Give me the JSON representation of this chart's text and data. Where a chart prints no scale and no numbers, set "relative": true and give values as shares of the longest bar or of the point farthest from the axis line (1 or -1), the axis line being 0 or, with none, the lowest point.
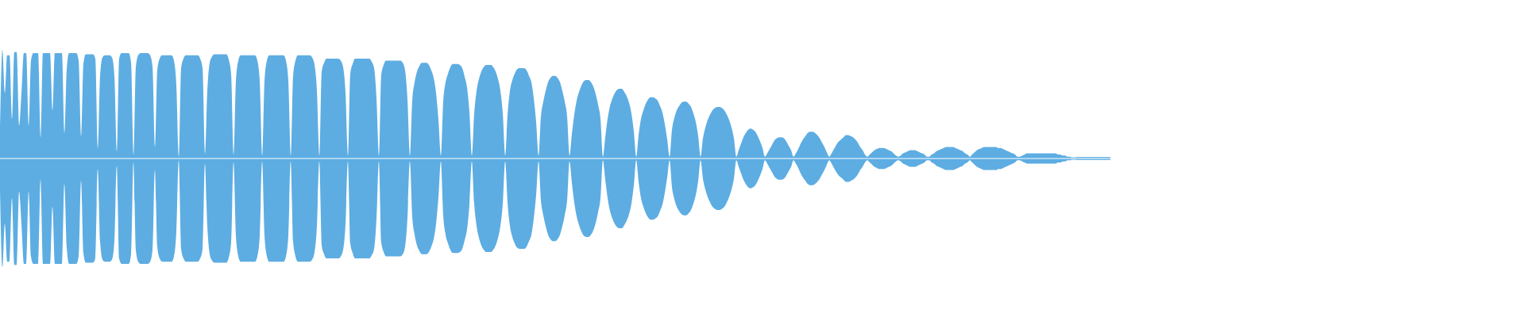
{
  "chart_data": [
    {
      "type": "area",
      "relative": true,
      "categories": [
        null,
        null,
        null,
        null,
        null,
        null,
        null,
        null,
        null,
        null,
        null,
        null,
        null,
        null,
        null,
        null,
        null,
        null,
        null,
        null,
        null,
        null,
        null,
        null,
        null,
        null,
        null,
        null,
        null,
        null,
        null,
        null,
        null,
        null,
        null,
        null,
        null,
        null,
        null,
        null,
        null,
        null,
        null,
        null,
        null,
        null,
        null,
        null,
        null,
        null,
        null,
        null,
        null,
        null,
        null,
        null,
        null,
        null,
        null,
        null,
        null,
        null,
        null,
        null,
        null,
        null,
        null,
        null,
        null,
        null,
        null,
        null,
        null,
        null,
        null,
        null,
        null,
        null,
        null,
        null,
        null,
        null,
        null,
        null,
        null,
        null,
        null,
        null,
        null,
        null,
        null,
        null,
        null,
        null,
        null,
        null,
        null,
        null,
        null,
        null,
        null,
        null,
        null,
        null,
        null,
        null,
        null,
        null,
        null,
        null,
        null,
        null,
        null,
        null,
        null,
        null,
        null,
        null,
        null,
        null,
        null,
        null,
        null,
        null,
        null,
        null,
        null,
        null,
        null,
        null,
        null,
        null,
        null,
        null,
        null,
        null,
        null,
        null,
        null,
        null,
        null,
        null,
        null,
        null,
        null,
        null,
        null,
        null,
        null,
        null,
        null,
        null,
        null,
        null,
        null,
        null,
        null,
        null,
        null,
        null,
        null,
        null,
        null,
        null,
        null,
        null,
        null,
        null,
        null,
        null,
        null,
        null,
        null,
        null,
        null,
        null,
        null,
        null,
        null,
        null,
        null,
        null,
        null,
        null,
        null,
        null,
        null,
        null,
        null,
        null,
        null,
        null,
        null,
        null,
        null,
        null,
        null,
        null,
        null,
        null,
        null,
        null,
        null,
        null,
        null,
        null,
        null,
        null,
        null,
        null,
        null,
        null,
        null,
        null,
        null,
        null,
        null,
        null,
        null,
        null,
        null,
        null,
        null,
        null,
        null,
        null,
        null,
        null,
        null,
        null,
        null,
        null,
        null,
        null,
        null,
        null,
        null,
        null,
        null,
        null,
        null,
        null,
        null,
        null,
        null,
        null,
        null,
        null,
        null,
        null,
        null,
        null,
        null,
        null,
        null,
        null,
        null,
        null,
        null,
        null,
        null,
        null,
        null,
        null,
        null,
        null,
        null,
        null,
        null,
        null,
        null,
        null,
        null,
        null,
        null,
        null,
        null,
        null,
        null,
        null,
        null,
        null,
        null,
        null,
        null,
        null,
        null,
        null,
        null,
        null,
        null,
        null,
        null,
        null,
        null,
        null,
        null,
        null,
        null,
        null,
        null,
        null,
        null,
        null,
        null,
        null,
        null,
        null,
        null,
        null,
        null,
        null,
        null,
        null,
        null,
        null,
        null,
        null,
        null,
        null,
        null,
        null,
        null,
        null,
        null,
        null,
        null,
        null,
        null,
        null,
        null,
        null,
        null,
        null,
        null,
        null,
        null,
        null,
        null,
        null,
        null,
        null,
        null,
        null,
        null,
        null,
        null,
        null,
        null,
        null,
        null,
        null,
        null,
        null,
        null,
        null,
        null,
        null,
        null,
        null,
        null,
        null,
        null,
        null,
        null,
        null,
        null,
        null,
        null,
        null,
        null,
        null,
        null,
        null,
        null,
        null,
        null,
        null,
        null,
        null,
        null,
        null,
        null,
        null,
        null,
        null,
        null,
        null,
        null,
        null,
        null,
        null,
        null,
        null,
        null,
        null,
        null,
        null,
        null,
        null,
        null,
        null,
        null,
        null,
        null,
        null,
        null,
        null,
        null,
        null,
        null,
        null,
        null,
        null,
        null,
        null,
        null,
        null,
        null,
        null,
        null,
        null,
        null,
        null,
        null,
        null,
        null,
        null,
        null,
        null,
        null,
        null,
        null,
        null,
        null,
        null,
        null,
        null,
        null,
        null,
        null,
        null,
        null,
        null,
        null,
        null,
        null,
        null,
        null,
        null,
        null,
        null,
        null,
        null,
        null,
        null,
        null,
        null,
        null,
        null,
        null,
        null,
        null,
        null,
        null,
        null,
        null
      ],
      "series": [
        {
          "color": "#5dade2",
          "values": [
            0.29,
            1,
            0.6,
            0.95,
            0.95,
            0.36,
            0.98,
            0.98,
            0.3,
            0.6,
            0.97,
            0.97,
            0.3,
            0.9,
            0.97,
            0.97,
            0.97,
            0.19,
            0.97,
            0.97,
            0.97,
            0.97,
            0.44,
            0.97,
            0.97,
            0.97,
            0.97,
            0.23,
            0.82,
            0.97,
            0.97,
            0.97,
            0.97,
            0.9,
            0.2,
            0.87,
            0.96,
            0.96,
            0.96,
            0.96,
            0.92,
            0.09,
            0.76,
            0.93,
            0.95,
            0.95,
            0.95,
            0.93,
            0.76,
            0.06,
            0.92,
            0.97,
            0.97,
            0.97,
            0.97,
            0.88,
            0.03,
            0.84,
            0.95,
            0.97,
            0.97,
            0.97,
            0.97,
            0.95,
            0.84,
            0.1,
            0.81,
            0.92,
            0.95,
            0.95,
            0.95,
            0.95,
            0.95,
            0.9,
            0.67,
            0.01,
            0.83,
            0.92,
            0.95,
            0.95,
            0.95,
            0.95,
            0.95,
            0.95,
            0.92,
            0.83,
            0.04,
            0.62,
            0.88,
            0.94,
            0.96,
            0.96,
            0.96,
            0.96,
            0.96,
            0.96,
            0.91,
            0.77,
            0.03,
            0.71,
            0.9,
            0.95,
            0.95,
            0.95,
            0.95,
            0.95,
            0.95,
            0.95,
            0.9,
            0.71,
            0.02,
            0.71,
            0.9,
            0.95,
            0.95,
            0.95,
            0.95,
            0.95,
            0.95,
            0.95,
            0.9,
            0.71,
            0.02,
            0.76,
            0.9,
            0.95,
            0.95,
            0.95,
            0.95,
            0.95,
            0.95,
            0.93,
            0.86,
            0.62,
            0.02,
            0.8,
            0.88,
            0.92,
            0.92,
            0.92,
            0.92,
            0.92,
            0.92,
            0.9,
            0.84,
            0.6,
            0.02,
            0.78,
            0.87,
            0.92,
            0.92,
            0.92,
            0.92,
            0.92,
            0.92,
            0.92,
            0.89,
            0.83,
            0.55,
            0.02,
            0.77,
            0.86,
            0.9,
            0.9,
            0.9,
            0.9,
            0.9,
            0.9,
            0.9,
            0.88,
            0.81,
            0.54,
            0.02,
            0.53,
            0.7,
            0.8,
            0.85,
            0.88,
            0.88,
            0.88,
            0.86,
            0.81,
            0.74,
            0.6,
            0.35,
            0.02,
            0.52,
            0.7,
            0.78,
            0.84,
            0.87,
            0.87,
            0.87,
            0.86,
            0.83,
            0.75,
            0.65,
            0.42,
            0.02,
            0.41,
            0.62,
            0.73,
            0.8,
            0.84,
            0.86,
            0.86,
            0.86,
            0.84,
            0.8,
            0.73,
            0.62,
            0.41,
            0.02,
            0.4,
            0.62,
            0.72,
            0.78,
            0.82,
            0.83,
            0.83,
            0.83,
            0.81,
            0.76,
            0.7,
            0.55,
            0.33,
            0.02,
            0.38,
            0.52,
            0.62,
            0.7,
            0.74,
            0.76,
            0.76,
            0.74,
            0.7,
            0.62,
            0.52,
            0.38,
            0.02,
            0.22,
            0.4,
            0.53,
            0.61,
            0.67,
            0.71,
            0.72,
            0.72,
            0.7,
            0.66,
            0.59,
            0.49,
            0.36,
            0.01,
            0.19,
            0.36,
            0.48,
            0.55,
            0.6,
            0.63,
            0.64,
            0.64,
            0.61,
            0.57,
            0.51,
            0.41,
            0.24,
            0.01,
            0.21,
            0.36,
            0.44,
            0.5,
            0.54,
            0.56,
            0.56,
            0.55,
            0.53,
            0.48,
            0.42,
            0.31,
            0.17,
            0.01,
            0.26,
            0.37,
            0.44,
            0.48,
            0.51,
            0.52,
            0.52,
            0.5,
            0.47,
            0.41,
            0.33,
            0.2,
            0.01,
            0.18,
            0.28,
            0.35,
            0.4,
            0.44,
            0.46,
            0.47,
            0.47,
            0.46,
            0.44,
            0.4,
            0.35,
            0.28,
            0.18,
            0.01,
            0.07,
            0.13,
            0.19,
            0.23,
            0.26,
            0.27,
            0.26,
            0.24,
            0.2,
            0.15,
            0.09,
            0.01,
            0.04,
            0.08,
            0.12,
            0.16,
            0.18,
            0.19,
            0.19,
            0.18,
            0.15,
            0.11,
            0.07,
            0.01,
            0.04,
            0.08,
            0.13,
            0.17,
            0.2,
            0.23,
            0.24,
            0.24,
            0.23,
            0.21,
            0.18,
            0.14,
            0.1,
            0.05,
            0.01,
            0.04,
            0.08,
            0.12,
            0.15,
            0.17,
            0.19,
            0.21,
            0.21,
            0.2,
            0.19,
            0.17,
            0.14,
            0.1,
            0.07,
            0.03,
            0.01,
            0.03,
            0.05,
            0.07,
            0.08,
            0.09,
            0.09,
            0.09,
            0.08,
            0.07,
            0.06,
            0.04,
            0.02,
            0.01,
            0.02,
            0.04,
            0.05,
            0.06,
            0.07,
            0.07,
            0.07,
            0.06,
            0.05,
            0.04,
            0.03,
            0.01,
            0.01,
            0.03,
            0.04,
            0.06,
            0.07,
            0.08,
            0.09,
            0.1,
            0.1,
            0.1,
            0.1,
            0.09,
            0.08,
            0.07,
            0.06,
            0.04,
            0.03,
            0.01,
            0.03,
            0.05,
            0.07,
            0.08,
            0.09,
            0.1,
            0.1,
            0.1,
            0.1,
            0.1,
            0.1,
            0.09,
            0.09,
            0.08,
            0.07,
            0.06,
            0.05,
            0.04,
            0.03,
            0.01,
            0.01,
            0.02,
            0.03,
            0.04,
            0.04,
            0.04,
            0.04,
            0.04,
            0.04,
            0.04,
            0.04,
            0.04,
            0.04,
            0.04,
            0.04,
            0.04,
            0.03,
            0.03,
            0.02,
            0.02,
            0.01,
            0.01,
            0,
            0,
            0.006,
            0.006,
            0.006,
            0.006,
            0.006,
            0.006,
            0.006,
            0.006,
            0.006,
            0.006,
            0.006,
            0.006,
            0.006,
            0.006,
            0.006
          ]
        }
      ]
    },
    {
      "type": "area",
      "relative": true,
      "categories": [
        null,
        null,
        null,
        null,
        null,
        null,
        null,
        null,
        null,
        null,
        null,
        null,
        null,
        null,
        null,
        null,
        null,
        null,
        null,
        null,
        null,
        null,
        null,
        null,
        null,
        null,
        null,
        null,
        null,
        null,
        null,
        null,
        null,
        null,
        null,
        null,
        null,
        null,
        null,
        null,
        null,
        null,
        null,
        null,
        null,
        null,
        null,
        null,
        null,
        null,
        null,
        null,
        null,
        null,
        null,
        null,
        null,
        null,
        null,
        null,
        null,
        null,
        null,
        null,
        null,
        null,
        null,
        null,
        null,
        null,
        null,
        null,
        null,
        null,
        null,
        null,
        null,
        null,
        null,
        null,
        null,
        null,
        null,
        null,
        null,
        null,
        null,
        null,
        null,
        null,
        null,
        null,
        null,
        null,
        null,
        null,
        null,
        null,
        null,
        null,
        null,
        null,
        null,
        null,
        null,
        null,
        null,
        null,
        null,
        null,
        null,
        null,
        null,
        null,
        null,
        null,
        null,
        null,
        null,
        null,
        null,
        null,
        null,
        null,
        null,
        null,
        null,
        null,
        null,
        null,
        null,
        null,
        null,
        null,
        null,
        null,
        null,
        null,
        null,
        null,
        null,
        null,
        null,
        null,
        null,
        null,
        null,
        null,
        null,
        null,
        null,
        null,
        null,
        null,
        null,
        null,
        null,
        null,
        null,
        null,
        null,
        null,
        null,
        null,
        null,
        null,
        null,
        null,
        null,
        null,
        null,
        null,
        null,
        null,
        null,
        null,
        null,
        null,
        null,
        null,
        null,
        null,
        null,
        null,
        null,
        null,
        null,
        null,
        null,
        null,
        null,
        null,
        null,
        null,
        null,
        null,
        null,
        null,
        null,
        null,
        null,
        null,
        null,
        null,
        null,
        null,
        null,
        null,
        null,
        null,
        null,
        null,
        null,
        null,
        null,
        null,
        null,
        null,
        null,
        null,
        null,
        null,
        null,
        null,
        null,
        null,
        null,
        null,
        null,
        null,
        null,
        null,
        null,
        null,
        null,
        null,
        null,
        null,
        null,
        null,
        null,
        null,
        null,
        null,
        null,
        null,
        null,
        null,
        null,
        null,
        null,
        null,
        null,
        null,
        null,
        null,
        null,
        null,
        null,
        null,
        null,
        null,
        null,
        null,
        null,
        null,
        null,
        null,
        null,
        null,
        null,
        null,
        null,
        null,
        null,
        null,
        null,
        null,
        null,
        null,
        null,
        null,
        null,
        null,
        null,
        null,
        null,
        null,
        null,
        null,
        null,
        null,
        null,
        null,
        null,
        null,
        null,
        null,
        null,
        null,
        null,
        null,
        null,
        null,
        null,
        null,
        null,
        null,
        null,
        null,
        null,
        null,
        null,
        null,
        null,
        null,
        null,
        null,
        null,
        null,
        null,
        null,
        null,
        null,
        null,
        null,
        null,
        null,
        null,
        null,
        null,
        null,
        null,
        null,
        null,
        null,
        null,
        null,
        null,
        null,
        null,
        null,
        null,
        null,
        null,
        null,
        null,
        null,
        null,
        null,
        null,
        null,
        null,
        null,
        null,
        null,
        null,
        null,
        null,
        null,
        null,
        null,
        null,
        null,
        null,
        null,
        null,
        null,
        null,
        null,
        null,
        null,
        null,
        null,
        null,
        null,
        null,
        null,
        null,
        null,
        null,
        null,
        null,
        null,
        null,
        null,
        null,
        null,
        null,
        null,
        null,
        null,
        null,
        null,
        null,
        null,
        null,
        null,
        null,
        null,
        null,
        null,
        null,
        null,
        null,
        null,
        null,
        null,
        null,
        null,
        null,
        null,
        null,
        null,
        null,
        null,
        null,
        null,
        null,
        null,
        null,
        null,
        null,
        null,
        null,
        null,
        null,
        null,
        null,
        null,
        null,
        null,
        null,
        null,
        null,
        null,
        null,
        null,
        null,
        null,
        null,
        null,
        null,
        null,
        null,
        null,
        null,
        null,
        null,
        null,
        null,
        null,
        null,
        null,
        null,
        null,
        null,
        null,
        null,
        null,
        null,
        null,
        null,
        null,
        null,
        null,
        null
      ],
      "series": [
        {
          "color": "#5dade2",
          "values": [
            -0.29,
            -1,
            -0.6,
            -0.95,
            -0.95,
            -0.36,
            -0.98,
            -0.98,
            -0.3,
            -0.6,
            -0.97,
            -0.97,
            -0.3,
            -0.9,
            -0.97,
            -0.97,
            -0.97,
            -0.19,
            -0.97,
            -0.97,
            -0.97,
            -0.97,
            -0.44,
            -0.97,
            -0.97,
            -0.97,
            -0.97,
            -0.23,
            -0.82,
            -0.97,
            -0.97,
            -0.97,
            -0.97,
            -0.9,
            -0.2,
            -0.87,
            -0.96,
            -0.96,
            -0.96,
            -0.96,
            -0.92,
            -0.09,
            -0.76,
            -0.93,
            -0.95,
            -0.95,
            -0.95,
            -0.93,
            -0.76,
            -0.06,
            -0.92,
            -0.97,
            -0.97,
            -0.97,
            -0.97,
            -0.88,
            -0.03,
            -0.84,
            -0.95,
            -0.97,
            -0.97,
            -0.97,
            -0.97,
            -0.95,
            -0.84,
            -0.1,
            -0.81,
            -0.92,
            -0.95,
            -0.95,
            -0.95,
            -0.95,
            -0.95,
            -0.9,
            -0.67,
            -0.01,
            -0.83,
            -0.92,
            -0.95,
            -0.95,
            -0.95,
            -0.95,
            -0.95,
            -0.95,
            -0.92,
            -0.83,
            -0.04,
            -0.62,
            -0.88,
            -0.94,
            -0.96,
            -0.96,
            -0.96,
            -0.96,
            -0.96,
            -0.96,
            -0.91,
            -0.77,
            -0.03,
            -0.71,
            -0.9,
            -0.95,
            -0.95,
            -0.95,
            -0.95,
            -0.95,
            -0.95,
            -0.95,
            -0.9,
            -0.71,
            -0.02,
            -0.71,
            -0.9,
            -0.95,
            -0.95,
            -0.95,
            -0.95,
            -0.95,
            -0.95,
            -0.95,
            -0.9,
            -0.71,
            -0.02,
            -0.76,
            -0.9,
            -0.95,
            -0.95,
            -0.95,
            -0.95,
            -0.95,
            -0.95,
            -0.93,
            -0.86,
            -0.62,
            -0.02,
            -0.8,
            -0.88,
            -0.92,
            -0.92,
            -0.92,
            -0.92,
            -0.92,
            -0.92,
            -0.9,
            -0.84,
            -0.6,
            -0.02,
            -0.78,
            -0.87,
            -0.92,
            -0.92,
            -0.92,
            -0.92,
            -0.92,
            -0.92,
            -0.92,
            -0.89,
            -0.83,
            -0.55,
            -0.02,
            -0.77,
            -0.86,
            -0.9,
            -0.9,
            -0.9,
            -0.9,
            -0.9,
            -0.9,
            -0.9,
            -0.88,
            -0.81,
            -0.54,
            -0.02,
            -0.53,
            -0.7,
            -0.8,
            -0.85,
            -0.88,
            -0.88,
            -0.88,
            -0.86,
            -0.81,
            -0.74,
            -0.6,
            -0.35,
            -0.02,
            -0.52,
            -0.7,
            -0.78,
            -0.84,
            -0.87,
            -0.87,
            -0.87,
            -0.86,
            -0.83,
            -0.75,
            -0.65,
            -0.42,
            -0.02,
            -0.41,
            -0.62,
            -0.73,
            -0.8,
            -0.84,
            -0.86,
            -0.86,
            -0.86,
            -0.84,
            -0.8,
            -0.73,
            -0.62,
            -0.41,
            -0.02,
            -0.4,
            -0.62,
            -0.72,
            -0.78,
            -0.82,
            -0.83,
            -0.83,
            -0.83,
            -0.81,
            -0.76,
            -0.7,
            -0.55,
            -0.33,
            -0.02,
            -0.38,
            -0.52,
            -0.62,
            -0.7,
            -0.74,
            -0.76,
            -0.76,
            -0.74,
            -0.7,
            -0.62,
            -0.52,
            -0.38,
            -0.02,
            -0.22,
            -0.4,
            -0.53,
            -0.61,
            -0.67,
            -0.71,
            -0.72,
            -0.72,
            -0.7,
            -0.66,
            -0.59,
            -0.49,
            -0.36,
            -0.01,
            -0.19,
            -0.36,
            -0.48,
            -0.55,
            -0.6,
            -0.63,
            -0.64,
            -0.64,
            -0.61,
            -0.57,
            -0.51,
            -0.41,
            -0.24,
            -0.01,
            -0.21,
            -0.36,
            -0.44,
            -0.5,
            -0.54,
            -0.56,
            -0.56,
            -0.55,
            -0.53,
            -0.48,
            -0.42,
            -0.31,
            -0.17,
            -0.01,
            -0.26,
            -0.37,
            -0.44,
            -0.48,
            -0.51,
            -0.52,
            -0.52,
            -0.5,
            -0.47,
            -0.41,
            -0.33,
            -0.2,
            -0.01,
            -0.18,
            -0.28,
            -0.35,
            -0.4,
            -0.44,
            -0.46,
            -0.47,
            -0.47,
            -0.46,
            -0.44,
            -0.4,
            -0.35,
            -0.28,
            -0.18,
            -0.01,
            -0.07,
            -0.13,
            -0.19,
            -0.23,
            -0.26,
            -0.27,
            -0.26,
            -0.24,
            -0.2,
            -0.15,
            -0.09,
            -0.01,
            -0.04,
            -0.08,
            -0.12,
            -0.16,
            -0.18,
            -0.19,
            -0.19,
            -0.18,
            -0.15,
            -0.11,
            -0.07,
            -0.01,
            -0.04,
            -0.08,
            -0.13,
            -0.17,
            -0.2,
            -0.23,
            -0.24,
            -0.24,
            -0.23,
            -0.21,
            -0.18,
            -0.14,
            -0.1,
            -0.05,
            -0.01,
            -0.04,
            -0.08,
            -0.12,
            -0.15,
            -0.17,
            -0.19,
            -0.21,
            -0.21,
            -0.2,
            -0.19,
            -0.17,
            -0.14,
            -0.1,
            -0.07,
            -0.03,
            -0.01,
            -0.03,
            -0.05,
            -0.07,
            -0.08,
            -0.09,
            -0.09,
            -0.09,
            -0.08,
            -0.07,
            -0.06,
            -0.04,
            -0.02,
            -0.01,
            -0.02,
            -0.04,
            -0.05,
            -0.06,
            -0.07,
            -0.07,
            -0.07,
            -0.06,
            -0.05,
            -0.04,
            -0.03,
            -0.01,
            -0.01,
            -0.03,
            -0.04,
            -0.06,
            -0.07,
            -0.08,
            -0.09,
            -0.1,
            -0.1,
            -0.1,
            -0.1,
            -0.09,
            -0.08,
            -0.07,
            -0.06,
            -0.04,
            -0.03,
            -0.01,
            -0.03,
            -0.05,
            -0.07,
            -0.08,
            -0.09,
            -0.1,
            -0.1,
            -0.1,
            -0.1,
            -0.1,
            -0.1,
            -0.09,
            -0.09,
            -0.08,
            -0.07,
            -0.06,
            -0.05,
            -0.04,
            -0.03,
            -0.01,
            -0.01,
            -0.02,
            -0.03,
            -0.04,
            -0.04,
            -0.04,
            -0.04,
            -0.04,
            -0.04,
            -0.04,
            -0.04,
            -0.04,
            -0.04,
            -0.04,
            -0.04,
            -0.04,
            -0.03,
            -0.03,
            -0.02,
            -0.02,
            -0.01,
            -0.01,
            0,
            0,
            -0.006,
            -0.006,
            -0.006,
            -0.006,
            -0.006,
            -0.006,
            -0.006,
            -0.006,
            -0.006,
            -0.006,
            -0.006,
            -0.006,
            -0.006,
            -0.006,
            -0.006
          ]
        }
      ]
    }
  ]
}
